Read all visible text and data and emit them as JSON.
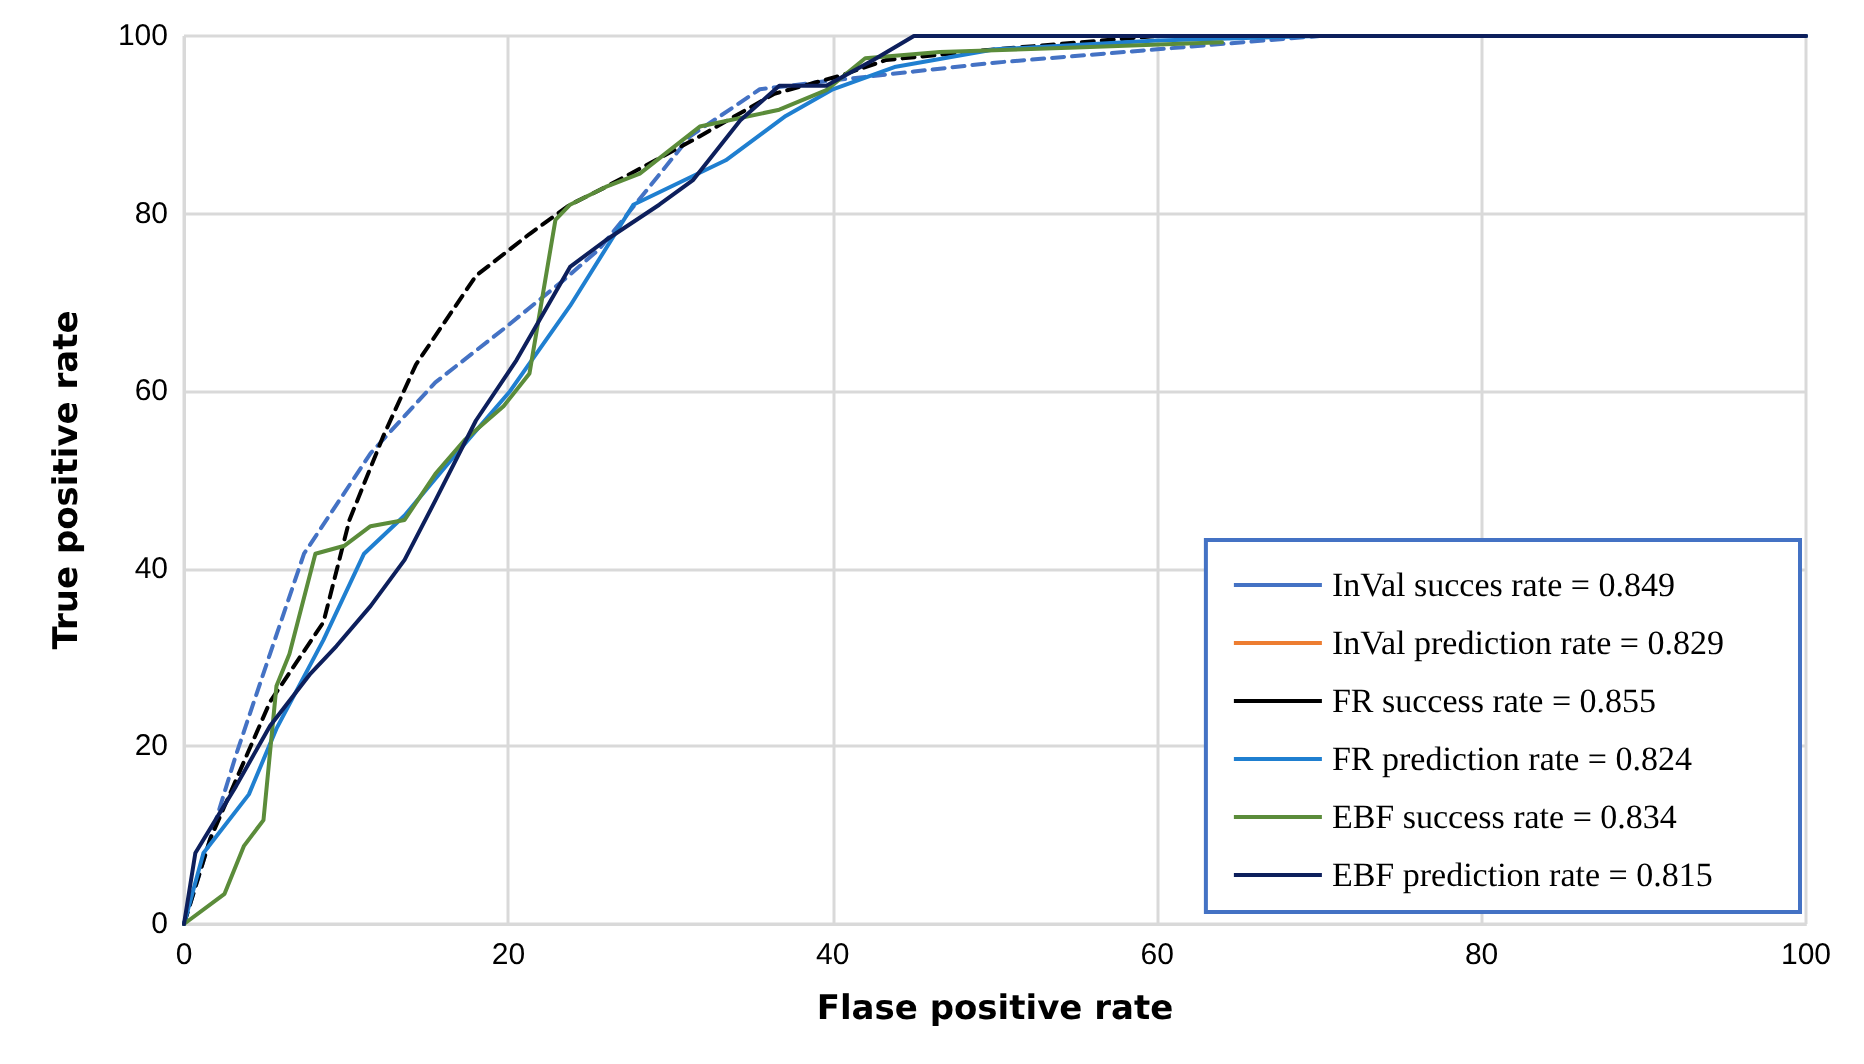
{
  "chart_data": {
    "type": "line",
    "xlabel": "Flase positive rate",
    "ylabel": "True positive rate",
    "xlim": [
      0,
      100
    ],
    "ylim": [
      0,
      100
    ],
    "xticks": [
      0,
      20,
      40,
      60,
      80,
      100
    ],
    "yticks": [
      0,
      20,
      40,
      60,
      80,
      100
    ],
    "grid": true,
    "legend": "bottom right",
    "marker": "none",
    "series": [
      {
        "name": "InVal succes rate = 0.849",
        "color": "#4472c4",
        "line_style": "dashed",
        "x": [
          0,
          3.2,
          5.3,
          7.4,
          11.5,
          15.5,
          19.7,
          23.4,
          25.6,
          31.2,
          35.5,
          40,
          45,
          50,
          60,
          70,
          100
        ],
        "values": [
          0,
          19,
          30.4,
          41.7,
          53,
          61,
          67,
          72.5,
          76,
          88.7,
          94,
          95,
          96,
          97,
          98.5,
          100,
          100
        ]
      },
      {
        "name": "InVal prediction rate = 0.829",
        "color": "#ed7d31",
        "line_style": "solid"
      },
      {
        "name": "FR success rate = 0.855",
        "color": "#000000",
        "line_style": "dashed",
        "x": [
          0,
          1.6,
          5.3,
          8.6,
          10.2,
          12.3,
          14.3,
          18,
          21.3,
          23.8,
          26,
          31.4,
          36.4,
          40.4,
          43.3,
          50,
          60,
          100
        ],
        "values": [
          0,
          9.5,
          25,
          34,
          45.5,
          55,
          63,
          73,
          77.7,
          81,
          83,
          88.3,
          93.5,
          95.5,
          97.3,
          98.5,
          100,
          100
        ]
      },
      {
        "name": "FR prediction rate = 0.824",
        "color": "#1f7fd0",
        "line_style": "solid",
        "x": [
          0,
          1.2,
          4,
          5.7,
          8.6,
          11.1,
          13.6,
          16.8,
          20.1,
          23.8,
          27.7,
          33.4,
          37.1,
          40,
          43.8,
          50,
          60,
          70,
          100
        ],
        "values": [
          0,
          8,
          14.6,
          22,
          32,
          41.7,
          46,
          53,
          60,
          69.6,
          81,
          86,
          91,
          94,
          96.5,
          98.5,
          99.5,
          100,
          100
        ]
      },
      {
        "name": "EBF success rate = 0.834",
        "color": "#5b8c3a",
        "line_style": "solid",
        "x": [
          0,
          2.5,
          3.7,
          4.9,
          5.7,
          6.5,
          8.1,
          9.9,
          11.5,
          13.6,
          15.5,
          17.3,
          19.7,
          21.3,
          22.9,
          23.8,
          26,
          28.1,
          31.8,
          36.7,
          39.6,
          42,
          46.6,
          55,
          64
        ],
        "values": [
          0,
          3.4,
          8.8,
          11.7,
          26.8,
          30.4,
          41.7,
          42.6,
          44.8,
          45.5,
          50.7,
          54.5,
          58.3,
          62,
          79.3,
          81,
          83,
          84.5,
          89.8,
          91.7,
          93.9,
          97.5,
          98.2,
          98.7,
          99.3
        ]
      },
      {
        "name": "EBF prediction rate = 0.815",
        "color": "#0d1f5c",
        "line_style": "solid",
        "x": [
          0,
          0.7,
          3.2,
          5.3,
          7.8,
          9.4,
          11.5,
          13.6,
          15.5,
          18,
          20.5,
          23.8,
          26,
          29.3,
          31.4,
          34.3,
          36.7,
          39.6,
          42.5,
          45,
          100
        ],
        "values": [
          0,
          8,
          15.5,
          22.3,
          28.2,
          31.3,
          35.8,
          41,
          47.7,
          56.7,
          63.5,
          74,
          77,
          81,
          83.8,
          90.5,
          94.4,
          94.4,
          97.3,
          100,
          100
        ]
      }
    ]
  }
}
